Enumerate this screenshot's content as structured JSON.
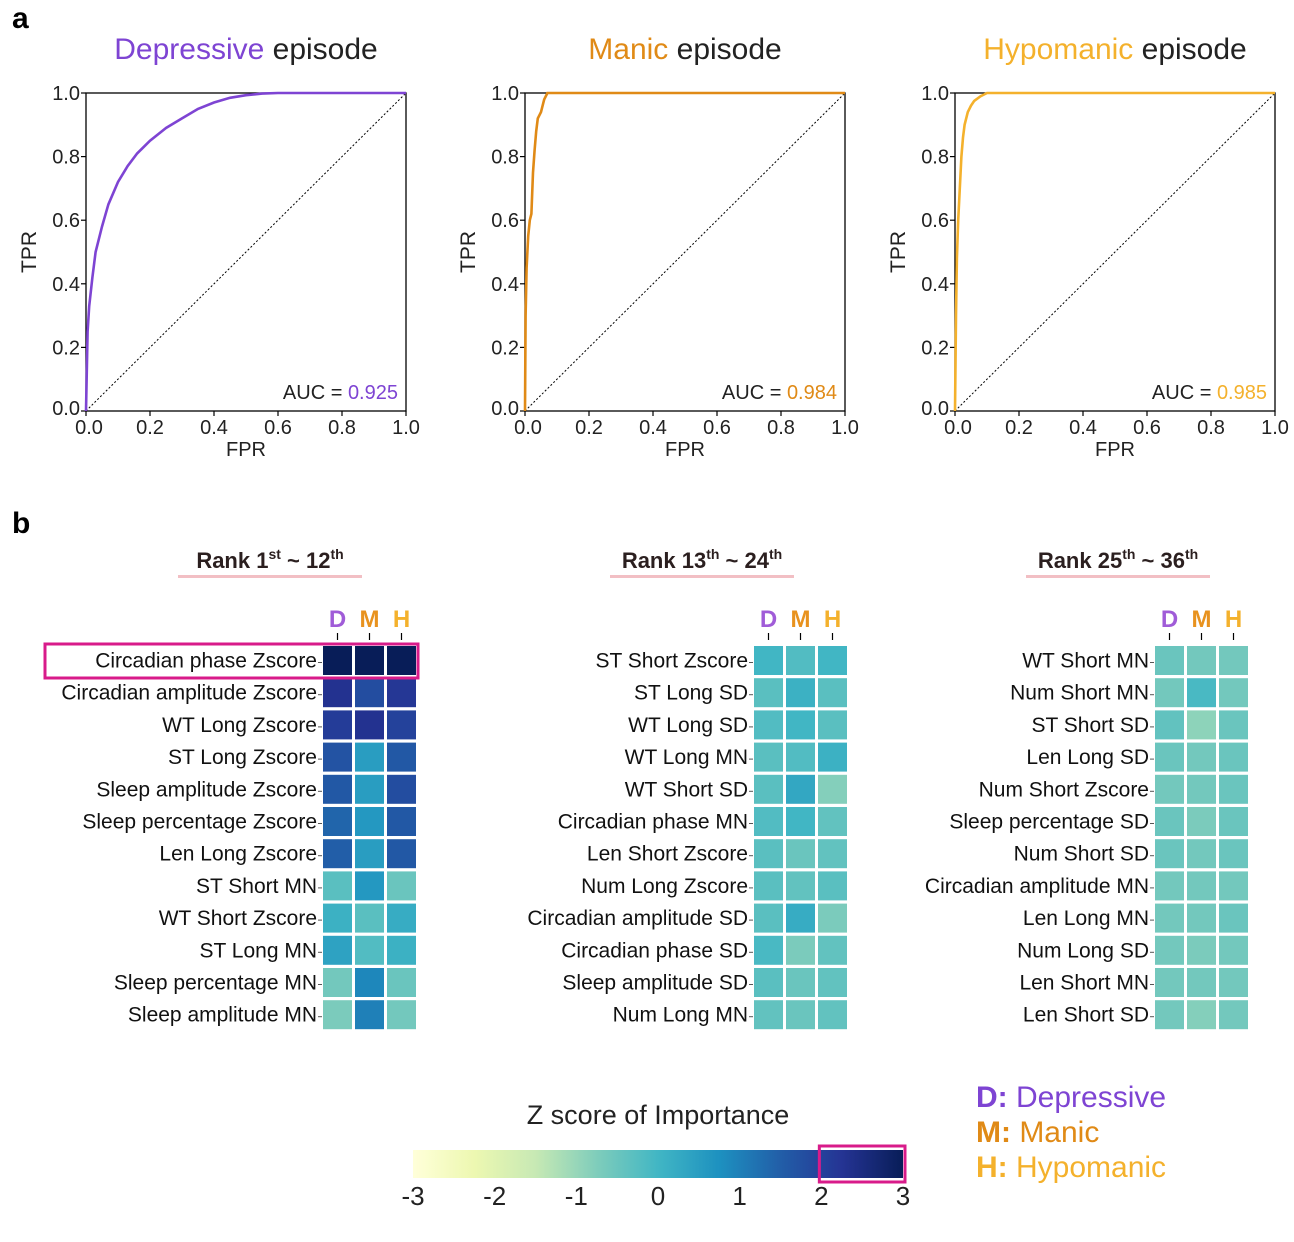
{
  "panel_a": {
    "label": "a",
    "roc_charts": [
      {
        "title_highlight": "Depressive",
        "title_rest": " episode",
        "color": "#7E44D3",
        "xlabel": "FPR",
        "ylabel": "TPR",
        "auc_prefix": "AUC = ",
        "auc_value": "0.925",
        "ticks": [
          "0.0",
          "0.2",
          "0.4",
          "0.6",
          "0.8",
          "1.0"
        ],
        "xlim": [
          0,
          1
        ],
        "ylim": [
          0,
          1
        ],
        "curve": [
          [
            0,
            0
          ],
          [
            0.005,
            0.25
          ],
          [
            0.01,
            0.33
          ],
          [
            0.02,
            0.42
          ],
          [
            0.03,
            0.5
          ],
          [
            0.05,
            0.58
          ],
          [
            0.07,
            0.65
          ],
          [
            0.1,
            0.72
          ],
          [
            0.13,
            0.77
          ],
          [
            0.16,
            0.81
          ],
          [
            0.2,
            0.85
          ],
          [
            0.25,
            0.89
          ],
          [
            0.3,
            0.92
          ],
          [
            0.35,
            0.95
          ],
          [
            0.4,
            0.97
          ],
          [
            0.45,
            0.985
          ],
          [
            0.5,
            0.993
          ],
          [
            0.55,
            0.998
          ],
          [
            0.6,
            1
          ],
          [
            1,
            1
          ]
        ]
      },
      {
        "title_highlight": "Manic",
        "title_rest": " episode",
        "color": "#E08A16",
        "xlabel": "FPR",
        "ylabel": "TPR",
        "auc_prefix": "AUC = ",
        "auc_value": "0.984",
        "ticks": [
          "0.0",
          "0.2",
          "0.4",
          "0.6",
          "0.8",
          "1.0"
        ],
        "xlim": [
          0,
          1
        ],
        "ylim": [
          0,
          1
        ],
        "curve": [
          [
            0,
            0
          ],
          [
            0.002,
            0.3
          ],
          [
            0.005,
            0.45
          ],
          [
            0.01,
            0.55
          ],
          [
            0.015,
            0.6
          ],
          [
            0.02,
            0.62
          ],
          [
            0.025,
            0.75
          ],
          [
            0.03,
            0.82
          ],
          [
            0.035,
            0.88
          ],
          [
            0.04,
            0.92
          ],
          [
            0.05,
            0.94
          ],
          [
            0.055,
            0.96
          ],
          [
            0.06,
            0.98
          ],
          [
            0.07,
            1
          ],
          [
            1,
            1
          ]
        ]
      },
      {
        "title_highlight": "Hypomanic",
        "title_rest": " episode",
        "color": "#F4B12C",
        "xlabel": "FPR",
        "ylabel": "TPR",
        "auc_prefix": "AUC = ",
        "auc_value": "0.985",
        "ticks": [
          "0.0",
          "0.2",
          "0.4",
          "0.6",
          "0.8",
          "1.0"
        ],
        "xlim": [
          0,
          1
        ],
        "ylim": [
          0,
          1
        ],
        "curve": [
          [
            0,
            0
          ],
          [
            0.003,
            0.3
          ],
          [
            0.006,
            0.48
          ],
          [
            0.01,
            0.6
          ],
          [
            0.015,
            0.7
          ],
          [
            0.02,
            0.8
          ],
          [
            0.025,
            0.86
          ],
          [
            0.03,
            0.9
          ],
          [
            0.04,
            0.94
          ],
          [
            0.05,
            0.96
          ],
          [
            0.06,
            0.975
          ],
          [
            0.08,
            0.99
          ],
          [
            0.1,
            1
          ],
          [
            1,
            1
          ]
        ]
      }
    ]
  },
  "panel_b": {
    "label": "b",
    "column_headers": [
      "D",
      "M",
      "H"
    ],
    "header_colors": [
      "#A05CD8",
      "#E8921E",
      "#F4B12C"
    ],
    "ranks": [
      {
        "title_pre": "Rank 1",
        "title_sup1": "st",
        "title_mid": " ~ 12",
        "title_sup2": "th",
        "rows": [
          {
            "label": "Circadian phase Zscore",
            "values": [
              3.0,
              3.0,
              3.0
            ]
          },
          {
            "label": "Circadian amplitude Zscore",
            "values": [
              2.3,
              1.8,
              2.2
            ]
          },
          {
            "label": "WT Long Zscore",
            "values": [
              2.1,
              2.3,
              2.0
            ]
          },
          {
            "label": "ST Long Zscore",
            "values": [
              1.7,
              0.5,
              1.6
            ]
          },
          {
            "label": "Sleep amplitude Zscore",
            "values": [
              1.6,
              0.5,
              1.8
            ]
          },
          {
            "label": "Sleep percentage Zscore",
            "values": [
              1.4,
              0.6,
              1.6
            ]
          },
          {
            "label": "Len Long Zscore",
            "values": [
              1.5,
              0.5,
              1.6
            ]
          },
          {
            "label": "ST Short MN",
            "values": [
              -0.3,
              0.6,
              -0.5
            ]
          },
          {
            "label": "WT Short Zscore",
            "values": [
              0.1,
              -0.3,
              0.2
            ]
          },
          {
            "label": "ST Long MN",
            "values": [
              0.4,
              -0.2,
              0.1
            ]
          },
          {
            "label": "Sleep percentage MN",
            "values": [
              -0.6,
              0.9,
              -0.5
            ]
          },
          {
            "label": "Sleep amplitude MN",
            "values": [
              -0.7,
              1.0,
              -0.6
            ]
          }
        ]
      },
      {
        "title_pre": "Rank 13",
        "title_sup1": "th",
        "title_mid": " ~ 24",
        "title_sup2": "th",
        "rows": [
          {
            "label": "ST Short Zscore",
            "values": [
              0.0,
              -0.2,
              0.0
            ]
          },
          {
            "label": "ST Long SD",
            "values": [
              -0.3,
              0.1,
              -0.3
            ]
          },
          {
            "label": "WT Long SD",
            "values": [
              -0.2,
              0.0,
              -0.3
            ]
          },
          {
            "label": "WT Long MN",
            "values": [
              -0.3,
              -0.2,
              0.1
            ]
          },
          {
            "label": "WT Short SD",
            "values": [
              -0.3,
              0.3,
              -0.8
            ]
          },
          {
            "label": "Circadian phase MN",
            "values": [
              -0.2,
              0.0,
              -0.4
            ]
          },
          {
            "label": "Len Short Zscore",
            "values": [
              -0.3,
              -0.5,
              -0.4
            ]
          },
          {
            "label": "Num Long Zscore",
            "values": [
              -0.3,
              -0.4,
              -0.3
            ]
          },
          {
            "label": "Circadian amplitude SD",
            "values": [
              -0.3,
              0.2,
              -0.7
            ]
          },
          {
            "label": "Circadian phase SD",
            "values": [
              -0.1,
              -0.7,
              -0.4
            ]
          },
          {
            "label": "Sleep amplitude SD",
            "values": [
              -0.3,
              -0.5,
              -0.4
            ]
          },
          {
            "label": "Num Long MN",
            "values": [
              -0.4,
              -0.5,
              -0.4
            ]
          }
        ]
      },
      {
        "title_pre": "Rank 25",
        "title_sup1": "th",
        "title_mid": " ~ 36",
        "title_sup2": "th",
        "rows": [
          {
            "label": "WT Short MN",
            "values": [
              -0.5,
              -0.6,
              -0.6
            ]
          },
          {
            "label": "Num Short MN",
            "values": [
              -0.6,
              -0.1,
              -0.6
            ]
          },
          {
            "label": "ST Short SD",
            "values": [
              -0.4,
              -0.9,
              -0.5
            ]
          },
          {
            "label": "Len Long SD",
            "values": [
              -0.5,
              -0.6,
              -0.5
            ]
          },
          {
            "label": "Num Short Zscore",
            "values": [
              -0.6,
              -0.6,
              -0.5
            ]
          },
          {
            "label": "Sleep percentage SD",
            "values": [
              -0.5,
              -0.7,
              -0.5
            ]
          },
          {
            "label": "Num Short SD",
            "values": [
              -0.5,
              -0.6,
              -0.5
            ]
          },
          {
            "label": "Circadian amplitude MN",
            "values": [
              -0.6,
              -0.6,
              -0.6
            ]
          },
          {
            "label": "Len Long MN",
            "values": [
              -0.6,
              -0.6,
              -0.5
            ]
          },
          {
            "label": "Num Long SD",
            "values": [
              -0.6,
              -0.7,
              -0.6
            ]
          },
          {
            "label": "Len Short MN",
            "values": [
              -0.6,
              -0.6,
              -0.6
            ]
          },
          {
            "label": "Len Short SD",
            "values": [
              -0.6,
              -0.8,
              -0.6
            ]
          }
        ]
      }
    ],
    "colorbar": {
      "title": "Z score of Importance",
      "min": -3,
      "max": 3,
      "ticks": [
        "-3",
        "-2",
        "-1",
        "0",
        "1",
        "2",
        "3"
      ],
      "highlight_range": [
        2,
        3
      ]
    },
    "highlight_color": "#D81B8A",
    "legend": [
      {
        "key": "D:",
        "text": " Depressive",
        "color": "#7E44D3"
      },
      {
        "key": "M:",
        "text": " Manic",
        "color": "#E08A16"
      },
      {
        "key": "H:",
        "text": " Hypomanic",
        "color": "#F4B12C"
      }
    ]
  }
}
